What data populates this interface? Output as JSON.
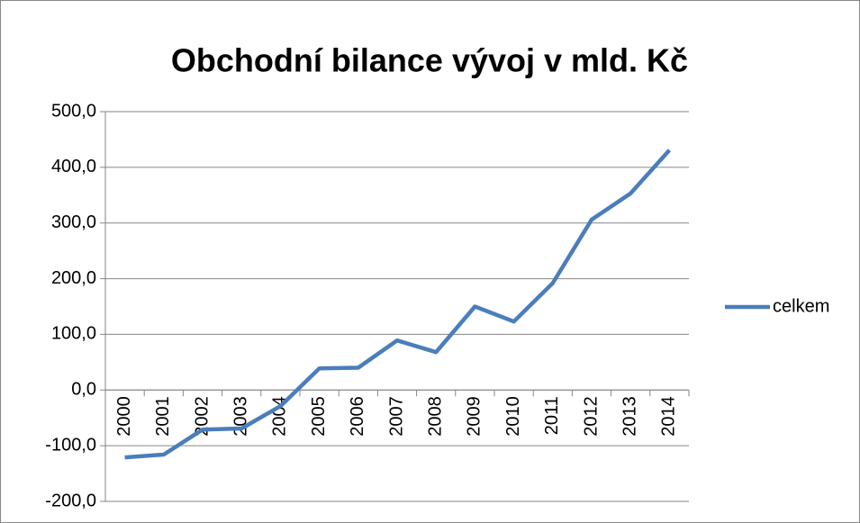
{
  "chart_data": {
    "type": "line",
    "title": "Obchodní bilance vývoj v mld. Kč",
    "categories": [
      "2000",
      "2001",
      "2002",
      "2003",
      "2004",
      "2005",
      "2006",
      "2007",
      "2008",
      "2009",
      "2010",
      "2011",
      "2012",
      "2013",
      "2014"
    ],
    "series": [
      {
        "name": "celkem",
        "color": "#4a7ebb",
        "values": [
          -121,
          -116,
          -71,
          -69,
          -29,
          39,
          40,
          89,
          68,
          150,
          123,
          192,
          306,
          353,
          431
        ]
      }
    ],
    "ylim": [
      -200,
      500
    ],
    "yticks": [
      {
        "value": -200,
        "label": "-200,0"
      },
      {
        "value": -100,
        "label": "-100,0"
      },
      {
        "value": 0,
        "label": "0,0"
      },
      {
        "value": 100,
        "label": "100,0"
      },
      {
        "value": 200,
        "label": "200,0"
      },
      {
        "value": 300,
        "label": "300,0"
      },
      {
        "value": 400,
        "label": "400,0"
      },
      {
        "value": 500,
        "label": "500,0"
      }
    ],
    "grid": true,
    "legend": "right"
  }
}
